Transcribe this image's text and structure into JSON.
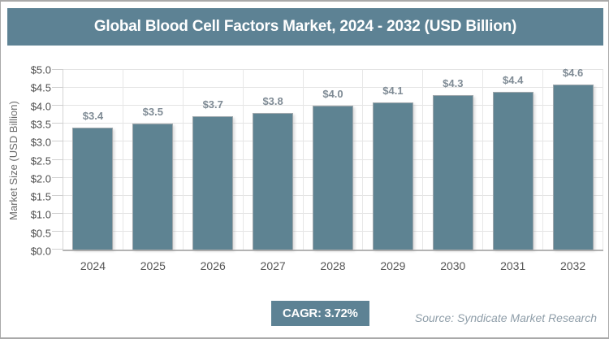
{
  "header": {
    "title": "Global Blood Cell Factors Market, 2024 - 2032 (USD Billion)"
  },
  "footer": {
    "cagr_label": "CAGR: 3.72%",
    "source": "Source: Syndicate Market Research"
  },
  "colors": {
    "accent": "#5d8294",
    "bar_fill": "#5e8392",
    "bar_edge": "#9fa8ad",
    "grid": "#e4e4e4",
    "axis": "#b3b3b3",
    "value_label": "#7f8b95",
    "tick_label": "#4d4d4d",
    "source_text": "#8f9ea9"
  },
  "chart_data": {
    "type": "bar",
    "title": "Global Blood Cell Factors Market, 2024 - 2032 (USD Billion)",
    "categories": [
      "2024",
      "2025",
      "2026",
      "2027",
      "2028",
      "2029",
      "2030",
      "2031",
      "2032"
    ],
    "values": [
      3.4,
      3.5,
      3.7,
      3.8,
      4.0,
      4.1,
      4.3,
      4.4,
      4.6
    ],
    "value_labels": [
      "$3.4",
      "$3.5",
      "$3.7",
      "$3.8",
      "$4.0",
      "$4.1",
      "$4.3",
      "$4.4",
      "$4.6"
    ],
    "xlabel": "",
    "ylabel": "Market Size (USD Billion)",
    "ylim": [
      0,
      5
    ],
    "ytick_step": 0.5,
    "ytick_labels": [
      "$0.0",
      "$0.5",
      "$1.0",
      "$1.5",
      "$2.0",
      "$2.5",
      "$3.0",
      "$3.5",
      "$4.0",
      "$4.5",
      "$5.0"
    ],
    "grid": true,
    "legend": false,
    "cagr": "3.72%"
  }
}
